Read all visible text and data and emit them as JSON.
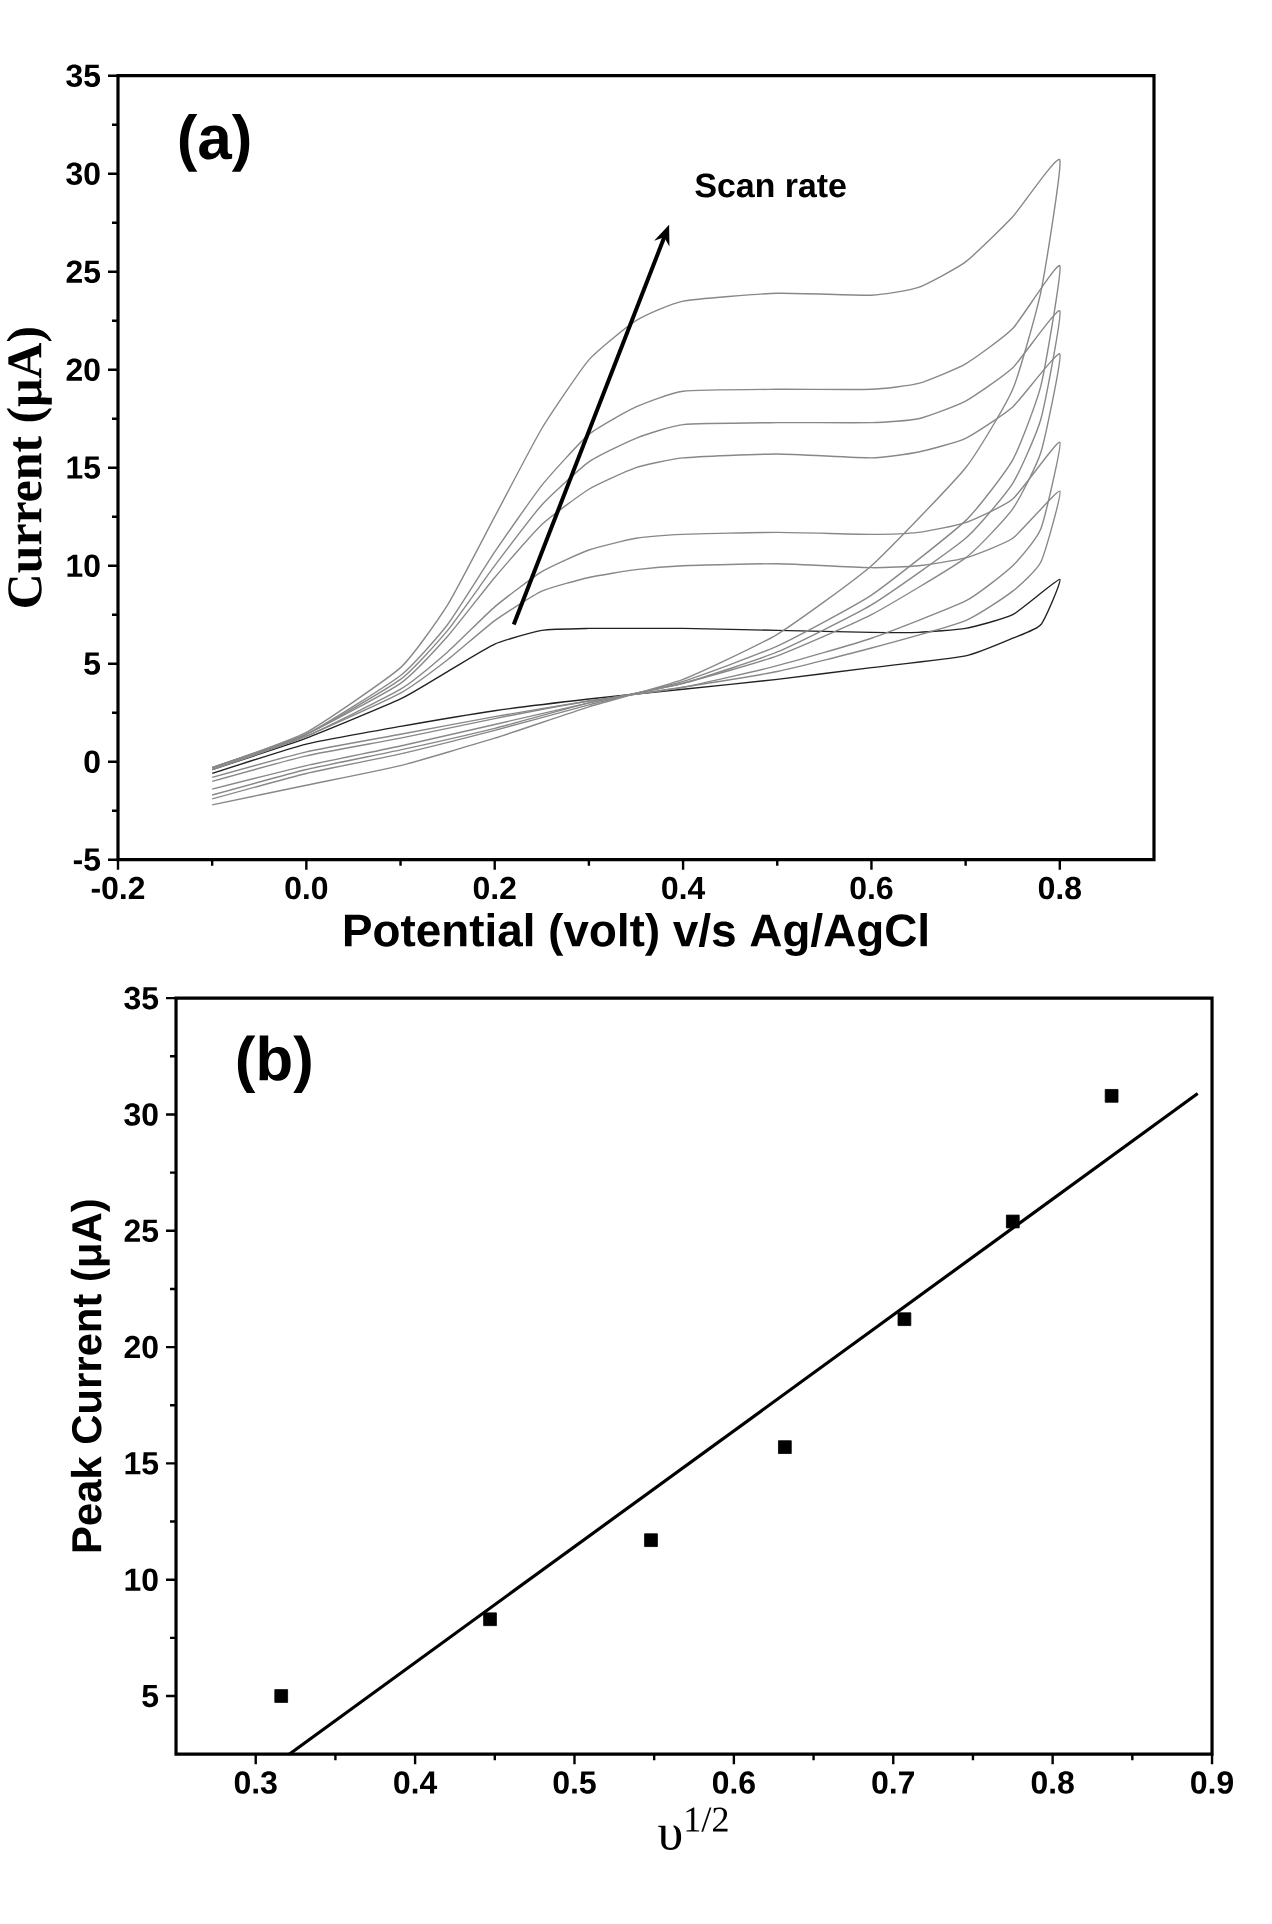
{
  "chart_data": [
    {
      "type": "line",
      "title": "(a)",
      "xlabel": "Potential (volt) v/s Ag/AgCl",
      "ylabel": "Current (μA)",
      "annotations": [
        "Scan rate"
      ],
      "xlim": [
        -0.2,
        0.9
      ],
      "ylim": [
        -5,
        35
      ],
      "xticks": [
        -0.2,
        {
          "value": 0,
          "label": "0.0"
        },
        0.2,
        0.4,
        0.6,
        0.8
      ],
      "yticks": [
        -5,
        0,
        5,
        10,
        15,
        20,
        25,
        30,
        35
      ],
      "x": [
        -0.1,
        0,
        0.1,
        0.15,
        0.2,
        0.25,
        0.3,
        0.35,
        0.4,
        0.5,
        0.6,
        0.65,
        0.7,
        0.75,
        0.8,
        0.78,
        0.75,
        0.7,
        0.6,
        0.5,
        0.4,
        0.3,
        0.2,
        0.1,
        0,
        -0.1
      ],
      "series": [
        {
          "color": "#222222",
          "values": [
            -0.4,
            1.2,
            3.2,
            4.6,
            6.0,
            6.7,
            6.8,
            6.8,
            6.8,
            6.7,
            6.6,
            6.6,
            6.8,
            7.5,
            9.3,
            7.0,
            6.3,
            5.4,
            4.8,
            4.2,
            3.7,
            3.2,
            2.6,
            1.8,
            0.9,
            -0.6
          ]
        },
        {
          "color": "#888888",
          "values": [
            -0.4,
            1.3,
            3.5,
            5.2,
            7.2,
            8.7,
            9.4,
            9.8,
            10.0,
            10.1,
            9.9,
            10.0,
            10.4,
            11.4,
            13.8,
            10.2,
            8.7,
            7.2,
            5.8,
            4.6,
            3.8,
            3.1,
            2.3,
            1.4,
            0.5,
            -0.8
          ]
        },
        {
          "color": "#888888",
          "values": [
            -0.4,
            1.3,
            3.7,
            5.6,
            7.9,
            9.7,
            10.8,
            11.4,
            11.6,
            11.7,
            11.6,
            11.7,
            12.2,
            13.4,
            16.3,
            11.9,
            10.0,
            8.2,
            6.3,
            4.9,
            3.8,
            3.1,
            2.2,
            1.2,
            0.3,
            -1.0
          ]
        },
        {
          "color": "#888888",
          "values": [
            -0.3,
            1.4,
            4.0,
            6.4,
            9.4,
            12.1,
            13.9,
            15.0,
            15.5,
            15.7,
            15.5,
            15.8,
            16.5,
            18.1,
            20.8,
            15.8,
            12.9,
            10.4,
            7.5,
            5.4,
            4.0,
            3.0,
            1.9,
            0.8,
            -0.2,
            -1.4
          ]
        },
        {
          "color": "#888888",
          "values": [
            -0.3,
            1.4,
            4.2,
            6.7,
            10.0,
            13.1,
            15.3,
            16.5,
            17.2,
            17.3,
            17.3,
            17.5,
            18.4,
            20.1,
            23.0,
            17.5,
            14.2,
            11.4,
            8.0,
            5.6,
            4.0,
            3.0,
            1.7,
            0.6,
            -0.4,
            -1.7
          ]
        },
        {
          "color": "#888888",
          "values": [
            -0.3,
            1.4,
            4.4,
            7.0,
            10.7,
            14.1,
            16.7,
            18.1,
            18.9,
            19.0,
            19.0,
            19.3,
            20.3,
            22.1,
            25.3,
            19.2,
            15.4,
            12.3,
            8.5,
            5.9,
            4.1,
            2.9,
            1.6,
            0.4,
            -0.6,
            -1.9
          ]
        },
        {
          "color": "#888888",
          "values": [
            -0.3,
            1.5,
            4.8,
            8.0,
            12.5,
            17.0,
            20.5,
            22.5,
            23.5,
            23.9,
            23.8,
            24.2,
            25.5,
            27.8,
            30.7,
            24.0,
            19.0,
            15.0,
            10.0,
            6.5,
            4.2,
            2.8,
            1.2,
            -0.2,
            -1.2,
            -2.2
          ]
        }
      ]
    },
    {
      "type": "scatter",
      "title": "(b)",
      "xlabel": "υ$^{1/2}$",
      "ylabel": "Peak Current (μA)",
      "xlim": [
        0.25,
        0.9
      ],
      "ylim": [
        2.5,
        35
      ],
      "xticks": [
        0.3,
        0.4,
        0.5,
        0.6,
        0.7,
        0.8,
        0.9
      ],
      "yticks": [
        5,
        10,
        15,
        20,
        25,
        30,
        35
      ],
      "series": [
        {
          "type": "scatter",
          "marker": "square",
          "color": "#000000",
          "x": [
            0.316,
            0.447,
            0.548,
            0.632,
            0.707,
            0.775,
            0.837
          ],
          "values": [
            5.0,
            8.3,
            11.7,
            15.7,
            21.2,
            25.4,
            30.8
          ]
        },
        {
          "type": "line",
          "color": "#000000",
          "x": [
            0.321,
            0.891
          ],
          "values": [
            2.5,
            30.9
          ]
        }
      ]
    }
  ]
}
